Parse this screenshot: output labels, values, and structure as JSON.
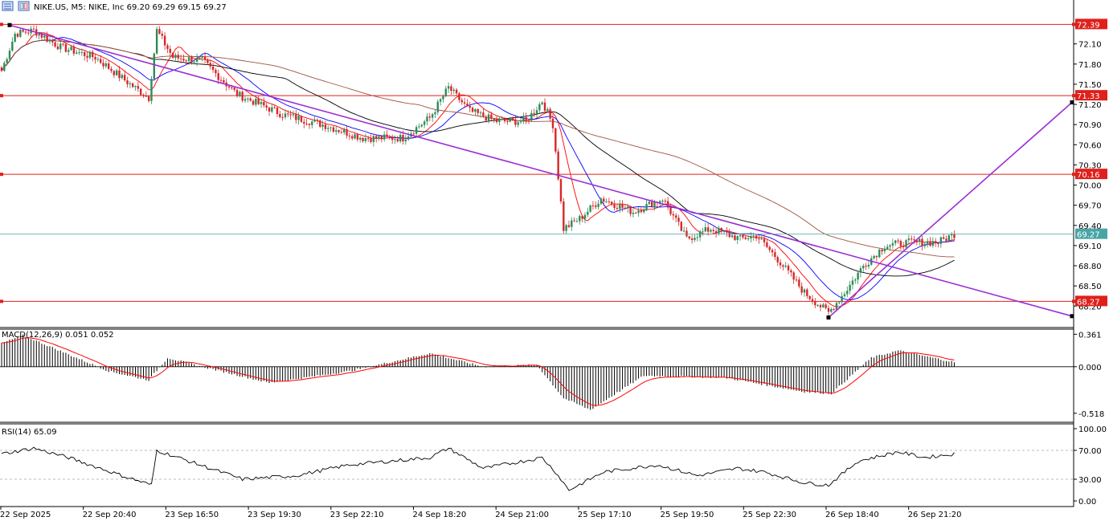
{
  "header": {
    "title": "NIKE.US, M5:  NIKE, Inc  69.20 69.29 69.15 69.27",
    "icons": [
      "list-icon",
      "chart-window-icon"
    ]
  },
  "colors": {
    "bull_candle": "#2e8b57",
    "bear_candle": "#d62728",
    "level_line": "#e0201b",
    "trend_line": "#9b2fd4",
    "ma_fast": "#ff0000",
    "ma_mid": "#0000ff",
    "ma_slow": "#000000",
    "ma_long": "#a0523c",
    "price_line": "#49a5a5",
    "macd_signal": "#ff0000",
    "hist": "#000000",
    "rsi_line": "#000000"
  },
  "chart_data": [
    {
      "type": "candlestick",
      "title": "NIKE.US, M5:  NIKE, Inc  69.20 69.29 69.15 69.27",
      "last_price": "69.27",
      "y_ticks": [
        "72.10",
        "71.80",
        "71.50",
        "71.20",
        "70.90",
        "70.60",
        "70.30",
        "70.00",
        "69.70",
        "69.40",
        "69.10",
        "68.80",
        "68.50",
        "68.20"
      ],
      "ylim": [
        68.0,
        72.55
      ],
      "horizontal_levels": [
        {
          "label": "72.39",
          "value": 72.39
        },
        {
          "label": "71.33",
          "value": 71.33
        },
        {
          "label": "70.16",
          "value": 70.16
        },
        {
          "label": "68.27",
          "value": 68.27
        }
      ],
      "x_labels": [
        "22 Sep 2025",
        "22 Sep 20:40",
        "23 Sep 16:50",
        "23 Sep 19:30",
        "23 Sep 22:10",
        "24 Sep 18:20",
        "24 Sep 21:00",
        "25 Sep 17:10",
        "25 Sep 19:50",
        "25 Sep 22:30",
        "26 Sep 18:40",
        "26 Sep 21:20"
      ],
      "trendlines": [
        {
          "from": {
            "bar": 3,
            "price": 72.38
          },
          "to": {
            "bar": 400,
            "price": 68.05
          }
        },
        {
          "from": {
            "bar": 309,
            "price": 68.03
          },
          "to": {
            "bar": 400,
            "price": 71.23
          }
        }
      ],
      "key_prices": [
        {
          "bar": 0,
          "price": 71.7
        },
        {
          "bar": 5,
          "price": 72.25
        },
        {
          "bar": 12,
          "price": 72.3
        },
        {
          "bar": 22,
          "price": 72.05
        },
        {
          "bar": 35,
          "price": 71.9
        },
        {
          "bar": 48,
          "price": 71.5
        },
        {
          "bar": 55,
          "price": 71.3
        },
        {
          "bar": 58,
          "price": 72.3
        },
        {
          "bar": 64,
          "price": 71.9
        },
        {
          "bar": 75,
          "price": 71.85
        },
        {
          "bar": 88,
          "price": 71.35
        },
        {
          "bar": 105,
          "price": 71.05
        },
        {
          "bar": 120,
          "price": 70.9
        },
        {
          "bar": 135,
          "price": 70.7
        },
        {
          "bar": 150,
          "price": 70.7
        },
        {
          "bar": 160,
          "price": 71.0
        },
        {
          "bar": 167,
          "price": 71.45
        },
        {
          "bar": 175,
          "price": 71.1
        },
        {
          "bar": 185,
          "price": 70.95
        },
        {
          "bar": 196,
          "price": 70.95
        },
        {
          "bar": 202,
          "price": 71.25
        },
        {
          "bar": 206,
          "price": 70.9
        },
        {
          "bar": 210,
          "price": 69.35
        },
        {
          "bar": 216,
          "price": 69.5
        },
        {
          "bar": 224,
          "price": 69.8
        },
        {
          "bar": 236,
          "price": 69.6
        },
        {
          "bar": 247,
          "price": 69.8
        },
        {
          "bar": 256,
          "price": 69.2
        },
        {
          "bar": 265,
          "price": 69.35
        },
        {
          "bar": 276,
          "price": 69.2
        },
        {
          "bar": 282,
          "price": 69.25
        },
        {
          "bar": 290,
          "price": 68.9
        },
        {
          "bar": 300,
          "price": 68.4
        },
        {
          "bar": 309,
          "price": 68.1
        },
        {
          "bar": 315,
          "price": 68.4
        },
        {
          "bar": 322,
          "price": 68.8
        },
        {
          "bar": 330,
          "price": 69.1
        },
        {
          "bar": 340,
          "price": 69.15
        },
        {
          "bar": 350,
          "price": 69.15
        },
        {
          "bar": 356,
          "price": 69.27
        }
      ],
      "moving_averages": [
        {
          "name": "fast",
          "period": 10
        },
        {
          "name": "mid",
          "period": 20
        },
        {
          "name": "slow",
          "period": 50
        },
        {
          "name": "long",
          "period": 100
        }
      ]
    },
    {
      "type": "histogram",
      "title": "MACD(12,26,9) 0.051 0.052",
      "y_ticks": [
        "0.361",
        "0.000",
        "-0.518"
      ],
      "ylim": [
        -0.6,
        0.4
      ],
      "key_values": [
        {
          "bar": 0,
          "macd": 0.26
        },
        {
          "bar": 8,
          "macd": 0.35
        },
        {
          "bar": 20,
          "macd": 0.2
        },
        {
          "bar": 40,
          "macd": -0.05
        },
        {
          "bar": 55,
          "macd": -0.15
        },
        {
          "bar": 62,
          "macd": 0.1
        },
        {
          "bar": 75,
          "macd": 0.0
        },
        {
          "bar": 100,
          "macd": -0.18
        },
        {
          "bar": 130,
          "macd": -0.05
        },
        {
          "bar": 160,
          "macd": 0.15
        },
        {
          "bar": 180,
          "macd": 0.0
        },
        {
          "bar": 200,
          "macd": 0.02
        },
        {
          "bar": 210,
          "macd": -0.35
        },
        {
          "bar": 220,
          "macd": -0.48
        },
        {
          "bar": 240,
          "macd": -0.1
        },
        {
          "bar": 270,
          "macd": -0.12
        },
        {
          "bar": 300,
          "macd": -0.28
        },
        {
          "bar": 310,
          "macd": -0.3
        },
        {
          "bar": 325,
          "macd": 0.1
        },
        {
          "bar": 335,
          "macd": 0.18
        },
        {
          "bar": 356,
          "macd": 0.051
        }
      ],
      "signal_last": 0.052
    },
    {
      "type": "line",
      "title": "RSI(14) 65.09",
      "y_ticks": [
        "100.00",
        "70.00",
        "30.00",
        "0.00"
      ],
      "ylim": [
        0,
        100
      ],
      "levels": [
        70,
        30
      ],
      "key_values": [
        {
          "bar": 0,
          "rsi": 65
        },
        {
          "bar": 12,
          "rsi": 73
        },
        {
          "bar": 25,
          "rsi": 60
        },
        {
          "bar": 45,
          "rsi": 35
        },
        {
          "bar": 56,
          "rsi": 22
        },
        {
          "bar": 58,
          "rsi": 70
        },
        {
          "bar": 70,
          "rsi": 55
        },
        {
          "bar": 90,
          "rsi": 30
        },
        {
          "bar": 110,
          "rsi": 35
        },
        {
          "bar": 130,
          "rsi": 50
        },
        {
          "bar": 160,
          "rsi": 60
        },
        {
          "bar": 167,
          "rsi": 73
        },
        {
          "bar": 180,
          "rsi": 45
        },
        {
          "bar": 202,
          "rsi": 60
        },
        {
          "bar": 207,
          "rsi": 40
        },
        {
          "bar": 212,
          "rsi": 15
        },
        {
          "bar": 225,
          "rsi": 40
        },
        {
          "bar": 245,
          "rsi": 50
        },
        {
          "bar": 260,
          "rsi": 35
        },
        {
          "bar": 275,
          "rsi": 45
        },
        {
          "bar": 285,
          "rsi": 40
        },
        {
          "bar": 300,
          "rsi": 25
        },
        {
          "bar": 309,
          "rsi": 22
        },
        {
          "bar": 320,
          "rsi": 55
        },
        {
          "bar": 335,
          "rsi": 68
        },
        {
          "bar": 345,
          "rsi": 60
        },
        {
          "bar": 356,
          "rsi": 65.09
        }
      ]
    }
  ]
}
